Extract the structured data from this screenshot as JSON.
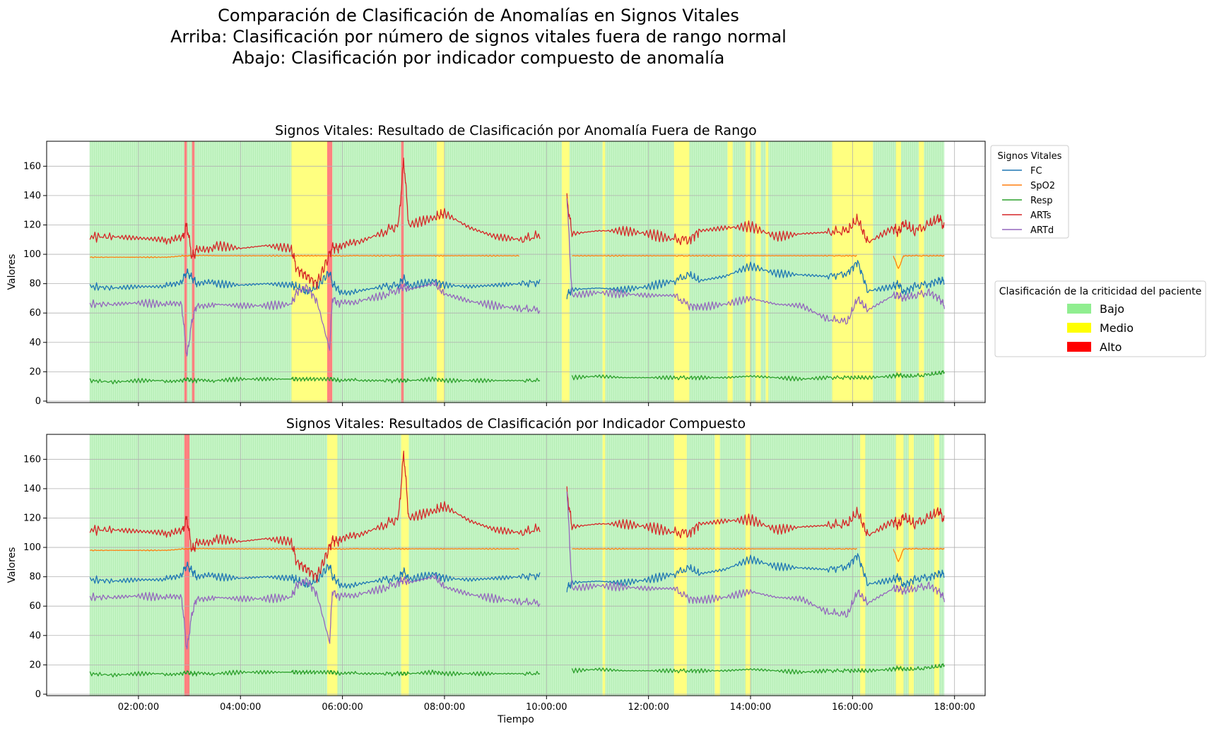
{
  "suptitle": [
    "Comparación de Clasificación de Anomalías en Signos Vitales",
    "Arriba: Clasificación por número de signos vitales fuera de rango normal",
    "Abajo: Clasificación por indicador compuesto de anomalía"
  ],
  "vitals_legend": {
    "title": "Signos Vitales",
    "entries": [
      {
        "label": "FC",
        "color": "#1f77b4"
      },
      {
        "label": "SpO2",
        "color": "#ff7f0e"
      },
      {
        "label": "Resp",
        "color": "#2ca02c"
      },
      {
        "label": "ARTs",
        "color": "#d62728"
      },
      {
        "label": "ARTd",
        "color": "#9467bd"
      }
    ]
  },
  "criticality_legend": {
    "title": "Clasificación de la criticidad del paciente",
    "entries": [
      {
        "label": "Bajo",
        "color": "#90ee90"
      },
      {
        "label": "Medio",
        "color": "#ffff00"
      },
      {
        "label": "Alto",
        "color": "#ff0000"
      }
    ]
  },
  "chart_data": {
    "type": "line",
    "shared": {
      "xlabel": "Tiempo",
      "ylabel": "Valores",
      "xlim_hours": [
        0.2,
        18.6
      ],
      "ylim": [
        -1,
        177
      ],
      "x_ticks": [
        {
          "h": 2,
          "label": "02:00:00"
        },
        {
          "h": 4,
          "label": "04:00:00"
        },
        {
          "h": 6,
          "label": "06:00:00"
        },
        {
          "h": 8,
          "label": "08:00:00"
        },
        {
          "h": 10,
          "label": "10:00:00"
        },
        {
          "h": 12,
          "label": "12:00:00"
        },
        {
          "h": 14,
          "label": "14:00:00"
        },
        {
          "h": 16,
          "label": "16:00:00"
        },
        {
          "h": 18,
          "label": "18:00:00"
        }
      ],
      "y_ticks": [
        0,
        20,
        40,
        60,
        80,
        100,
        120,
        140,
        160
      ],
      "grid": true,
      "legend_placement": "outside-right",
      "series_x_hours": [
        1.05,
        1.5,
        2.0,
        2.5,
        2.85,
        2.95,
        3.05,
        3.15,
        3.5,
        4.0,
        4.5,
        5.0,
        5.1,
        5.3,
        5.5,
        5.75,
        5.8,
        5.95,
        6.3,
        6.8,
        7.1,
        7.2,
        7.3,
        7.8,
        8.0,
        8.5,
        9.0,
        9.5,
        9.9,
        10.3,
        10.4,
        10.5,
        11.0,
        11.5,
        12.0,
        12.5,
        12.8,
        13.0,
        13.5,
        14.0,
        14.5,
        15.0,
        15.5,
        15.9,
        16.1,
        16.3,
        16.8,
        16.9,
        17.0,
        17.2,
        17.5,
        17.7,
        17.8
      ],
      "series": [
        {
          "name": "FC",
          "color": "#1f77b4",
          "values": [
            78,
            77,
            78,
            78,
            82,
            88,
            84,
            80,
            80,
            79,
            80,
            79,
            78,
            74,
            78,
            88,
            80,
            75,
            75,
            78,
            79,
            84,
            78,
            82,
            79,
            78,
            79,
            80,
            81,
            null,
            72,
            76,
            77,
            76,
            78,
            82,
            86,
            82,
            85,
            92,
            87,
            86,
            85,
            87,
            95,
            75,
            78,
            80,
            74,
            78,
            80,
            82,
            82
          ]
        },
        {
          "name": "SpO2",
          "color": "#ff7f0e",
          "values": [
            98,
            98,
            98,
            98,
            99,
            99,
            99,
            99,
            99,
            99,
            99,
            99,
            99,
            99,
            99,
            99,
            99,
            99,
            99,
            99,
            99,
            99,
            99,
            99,
            99,
            99,
            99,
            99,
            null,
            null,
            null,
            99,
            99,
            99,
            99,
            99,
            99,
            99,
            99,
            99,
            99,
            99,
            99,
            99,
            99,
            null,
            99,
            90,
            99,
            99,
            99,
            99,
            99
          ]
        },
        {
          "name": "Resp",
          "color": "#2ca02c",
          "values": [
            14,
            13,
            14,
            14,
            14,
            15,
            14,
            14,
            14,
            15,
            15,
            15,
            15,
            15,
            15,
            15,
            15,
            14,
            14,
            14,
            14,
            14,
            14,
            15,
            14,
            14,
            14,
            14,
            14,
            null,
            null,
            16,
            17,
            16,
            16,
            16,
            16,
            16,
            16,
            17,
            16,
            15,
            16,
            16,
            16,
            16,
            17,
            18,
            17,
            17,
            18,
            19,
            20
          ]
        },
        {
          "name": "ARTs",
          "color": "#d62728",
          "values": [
            112,
            112,
            111,
            110,
            110,
            120,
            98,
            103,
            106,
            104,
            106,
            104,
            90,
            85,
            80,
            100,
            105,
            104,
            108,
            115,
            120,
            165,
            120,
            125,
            128,
            118,
            112,
            110,
            113,
            null,
            138,
            114,
            116,
            116,
            114,
            110,
            110,
            116,
            118,
            119,
            112,
            114,
            115,
            116,
            124,
            108,
            118,
            115,
            121,
            116,
            120,
            125,
            118
          ]
        },
        {
          "name": "ARTd",
          "color": "#9467bd",
          "values": [
            66,
            66,
            67,
            66,
            65,
            30,
            55,
            66,
            66,
            65,
            65,
            66,
            74,
            78,
            68,
            35,
            70,
            66,
            68,
            72,
            76,
            78,
            76,
            80,
            73,
            68,
            65,
            63,
            62,
            null,
            140,
            72,
            74,
            73,
            72,
            72,
            65,
            64,
            66,
            70,
            66,
            65,
            56,
            54,
            70,
            62,
            72,
            72,
            70,
            72,
            74,
            70,
            65
          ]
        }
      ]
    },
    "panels": [
      {
        "title": "Signos Vitales: Resultado de Clasificación por Anomalía Fuera de Rango",
        "class_start_h": 1.05,
        "class_end_h": 17.8,
        "class_default": "Bajo",
        "medio_intervals": [
          [
            5.0,
            5.8
          ],
          [
            7.85,
            8.0
          ],
          [
            10.3,
            10.45
          ],
          [
            11.1,
            11.15
          ],
          [
            12.5,
            12.8
          ],
          [
            13.55,
            13.65
          ],
          [
            13.9,
            14.0
          ],
          [
            14.1,
            14.2
          ],
          [
            14.3,
            14.35
          ],
          [
            15.6,
            16.4
          ],
          [
            16.85,
            16.95
          ],
          [
            17.3,
            17.4
          ]
        ],
        "alto_intervals": [
          [
            2.9,
            2.95
          ],
          [
            3.05,
            3.1
          ],
          [
            5.7,
            5.8
          ],
          [
            7.15,
            7.2
          ]
        ]
      },
      {
        "title": "Signos Vitales: Resultados de Clasificación por Indicador Compuesto",
        "class_start_h": 1.05,
        "class_end_h": 17.8,
        "class_default": "Bajo",
        "medio_intervals": [
          [
            5.7,
            5.9
          ],
          [
            7.15,
            7.3
          ],
          [
            11.1,
            11.15
          ],
          [
            12.5,
            12.75
          ],
          [
            13.3,
            13.4
          ],
          [
            13.9,
            14.0
          ],
          [
            16.15,
            16.25
          ],
          [
            16.85,
            17.0
          ],
          [
            17.1,
            17.2
          ],
          [
            17.6,
            17.7
          ]
        ],
        "alto_intervals": [
          [
            2.9,
            3.0
          ]
        ]
      }
    ]
  }
}
